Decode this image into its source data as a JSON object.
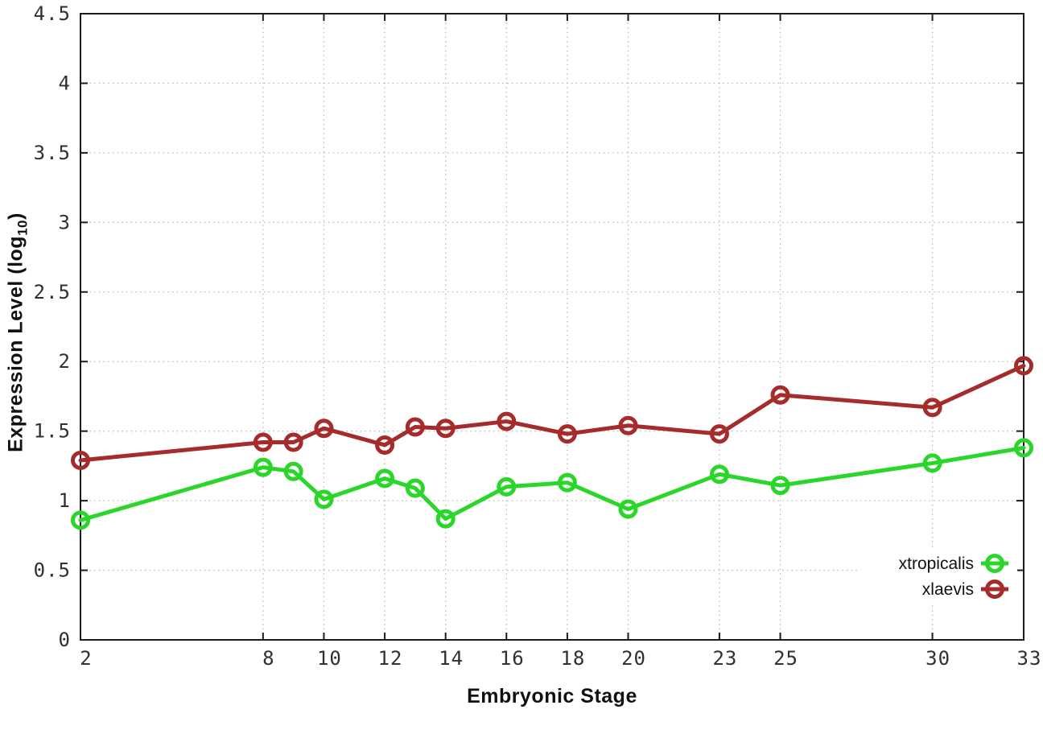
{
  "chart_data": {
    "type": "line",
    "title": "",
    "xlabel": "Embryonic Stage",
    "ylabel": "Expression Level (log10)",
    "ylabel_parts": {
      "main": "Expression Level (log",
      "sub": "10",
      "close": ")"
    },
    "xlim": [
      2,
      33
    ],
    "ylim": [
      0,
      4.5
    ],
    "x_ticks": [
      2,
      8,
      10,
      12,
      14,
      16,
      18,
      20,
      23,
      25,
      30,
      33
    ],
    "x_tick_labels": [
      "2",
      "8",
      "10",
      "12",
      "14",
      "16",
      "18",
      "20",
      "23",
      "25",
      "30",
      "33"
    ],
    "y_ticks": [
      0,
      0.5,
      1,
      1.5,
      2,
      2.5,
      3,
      3.5,
      4,
      4.5
    ],
    "y_tick_labels": [
      "0",
      "0.5",
      "1",
      "1.5",
      "2",
      "2.5",
      "3",
      "3.5",
      "4",
      "4.5"
    ],
    "grid": true,
    "marker": "open-circle",
    "x": [
      2,
      8,
      9,
      10,
      12,
      13,
      14,
      16,
      18,
      20,
      23,
      25,
      30,
      33
    ],
    "series": [
      {
        "name": "xtropicalis",
        "color": "#2bd62b",
        "values": [
          0.86,
          1.24,
          1.21,
          1.01,
          1.16,
          1.09,
          0.87,
          1.1,
          1.13,
          0.94,
          1.19,
          1.11,
          1.27,
          1.38
        ]
      },
      {
        "name": "xlaevis",
        "color": "#a62b2b",
        "values": [
          1.29,
          1.42,
          1.42,
          1.52,
          1.4,
          1.53,
          1.52,
          1.57,
          1.48,
          1.54,
          1.48,
          1.76,
          1.67,
          1.97
        ]
      }
    ],
    "legend": {
      "position": "inside-bottom-right",
      "entries": [
        "xtropicalis",
        "xlaevis"
      ]
    },
    "style": {
      "background": "#ffffff",
      "axis_color": "#1c1c1c",
      "grid_color": "#b9b9b9",
      "tick_label_color": "#303030"
    }
  }
}
